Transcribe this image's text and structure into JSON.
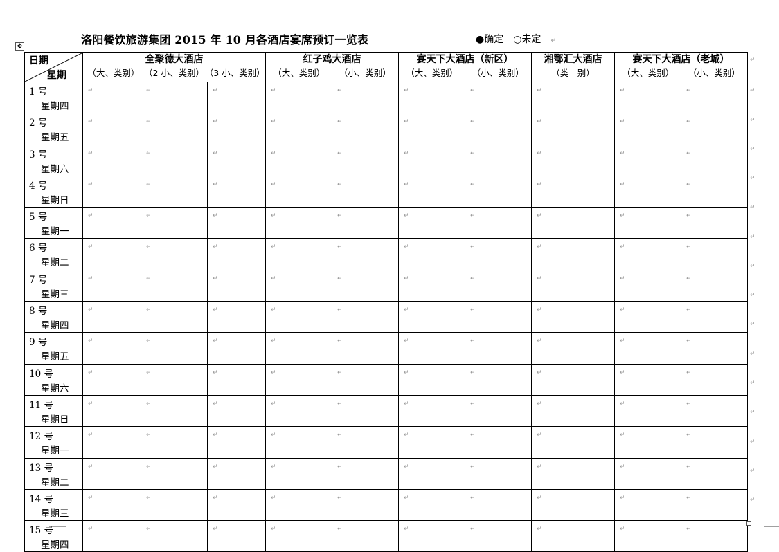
{
  "title": "洛阳餐饮旅游集团 2015 年 10 月各酒店宴席预订一览表",
  "legend": {
    "confirmed": "●确定",
    "pending": "○未定"
  },
  "corner": {
    "top": "日期",
    "bottom": "星期"
  },
  "hotels": [
    {
      "name": "全聚德大酒店",
      "subs": [
        "（大、类别）",
        "（2 小、类别）",
        "（3 小、类别）"
      ]
    },
    {
      "name": "红子鸡大酒店",
      "subs": [
        "（大、类别）",
        "（小、类别）"
      ]
    },
    {
      "name": "宴天下大酒店（新区）",
      "subs": [
        "（大、类别）",
        "（小、类别）"
      ]
    },
    {
      "name": "湘鄂汇大酒店",
      "subs": [
        "（类　别）"
      ]
    },
    {
      "name": "宴天下大酒店（老城）",
      "subs": [
        "（大、类别）",
        "（小、类别）"
      ]
    }
  ],
  "paragraph_mark": "↵",
  "rows": [
    {
      "date": "1 号",
      "weekday": "星期四"
    },
    {
      "date": "2 号",
      "weekday": "星期五"
    },
    {
      "date": "3 号",
      "weekday": "星期六"
    },
    {
      "date": "4 号",
      "weekday": "星期日"
    },
    {
      "date": "5 号",
      "weekday": "星期一"
    },
    {
      "date": "6 号",
      "weekday": "星期二"
    },
    {
      "date": "7 号",
      "weekday": "星期三"
    },
    {
      "date": "8 号",
      "weekday": "星期四"
    },
    {
      "date": "9 号",
      "weekday": "星期五"
    },
    {
      "date": "10 号",
      "weekday": "星期六"
    },
    {
      "date": "11 号",
      "weekday": "星期日"
    },
    {
      "date": "12 号",
      "weekday": "星期一"
    },
    {
      "date": "13 号",
      "weekday": "星期二"
    },
    {
      "date": "14 号",
      "weekday": "星期三"
    },
    {
      "date": "15 号",
      "weekday": "星期四"
    }
  ]
}
